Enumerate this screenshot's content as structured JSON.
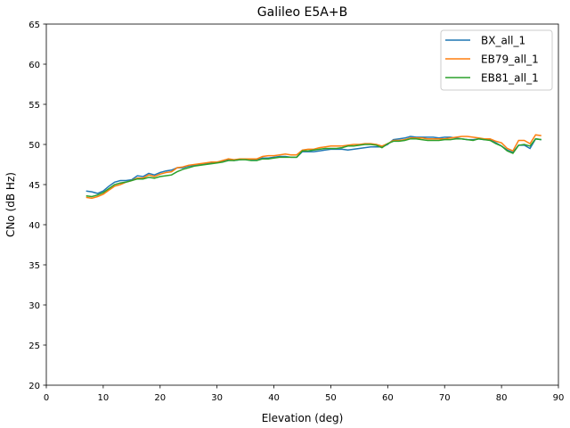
{
  "chart_data": {
    "type": "line",
    "title": "Galileo E5A+B",
    "xlabel": "Elevation (deg)",
    "ylabel": "CNo (dB Hz)",
    "xlim": [
      0,
      90
    ],
    "ylim": [
      20,
      65
    ],
    "xticks": [
      0,
      10,
      20,
      30,
      40,
      50,
      60,
      70,
      80,
      90
    ],
    "yticks": [
      20,
      25,
      30,
      35,
      40,
      45,
      50,
      55,
      60,
      65
    ],
    "grid": false,
    "legend": "top-right",
    "x": [
      7,
      8,
      9,
      10,
      11,
      12,
      13,
      14,
      15,
      16,
      17,
      18,
      19,
      20,
      21,
      22,
      23,
      24,
      25,
      26,
      27,
      28,
      29,
      30,
      31,
      32,
      33,
      34,
      35,
      36,
      37,
      38,
      39,
      40,
      41,
      42,
      43,
      44,
      45,
      46,
      47,
      48,
      49,
      50,
      51,
      52,
      53,
      54,
      55,
      56,
      57,
      58,
      59,
      60,
      61,
      62,
      63,
      64,
      65,
      66,
      67,
      68,
      69,
      70,
      71,
      72,
      73,
      74,
      75,
      76,
      77,
      78,
      79,
      80,
      81,
      82,
      83,
      84,
      85,
      86,
      87
    ],
    "series": [
      {
        "name": "BX_all_1",
        "color": "#1f77b4",
        "values": [
          44.2,
          44.1,
          43.9,
          44.2,
          44.8,
          45.3,
          45.5,
          45.5,
          45.6,
          46.1,
          46.0,
          46.4,
          46.2,
          46.5,
          46.7,
          46.8,
          47.1,
          47.1,
          47.3,
          47.4,
          47.5,
          47.6,
          47.7,
          47.8,
          47.9,
          48.1,
          48.0,
          48.1,
          48.2,
          48.1,
          48.1,
          48.3,
          48.3,
          48.4,
          48.5,
          48.5,
          48.4,
          48.4,
          49.1,
          49.1,
          49.1,
          49.2,
          49.3,
          49.4,
          49.4,
          49.4,
          49.3,
          49.4,
          49.5,
          49.6,
          49.7,
          49.7,
          49.7,
          50.0,
          50.6,
          50.7,
          50.8,
          51.0,
          50.9,
          50.9,
          50.9,
          50.9,
          50.8,
          50.9,
          50.9,
          50.8,
          50.7,
          50.6,
          50.6,
          50.7,
          50.6,
          50.6,
          50.2,
          49.8,
          49.3,
          49.0,
          49.9,
          49.9,
          49.5,
          50.7,
          50.6
        ]
      },
      {
        "name": "EB79_all_1",
        "color": "#ff7f0e",
        "values": [
          43.4,
          43.3,
          43.5,
          43.8,
          44.3,
          44.8,
          45.0,
          45.3,
          45.5,
          45.8,
          45.8,
          46.2,
          46.0,
          46.3,
          46.5,
          46.6,
          47.1,
          47.2,
          47.4,
          47.5,
          47.6,
          47.7,
          47.8,
          47.8,
          48.0,
          48.2,
          48.1,
          48.2,
          48.2,
          48.2,
          48.2,
          48.5,
          48.6,
          48.6,
          48.7,
          48.8,
          48.7,
          48.7,
          49.3,
          49.4,
          49.4,
          49.6,
          49.7,
          49.8,
          49.8,
          49.8,
          49.9,
          50.0,
          50.0,
          50.1,
          50.1,
          50.0,
          49.8,
          50.1,
          50.5,
          50.5,
          50.6,
          50.8,
          50.8,
          50.8,
          50.7,
          50.7,
          50.7,
          50.7,
          50.8,
          50.9,
          51.0,
          51.0,
          50.9,
          50.8,
          50.7,
          50.7,
          50.4,
          50.2,
          49.5,
          49.2,
          50.5,
          50.5,
          50.1,
          51.2,
          51.1
        ]
      },
      {
        "name": "EB81_all_1",
        "color": "#2ca02c",
        "values": [
          43.6,
          43.5,
          43.7,
          44.0,
          44.5,
          45.0,
          45.2,
          45.3,
          45.5,
          45.7,
          45.7,
          45.9,
          45.8,
          46.0,
          46.1,
          46.2,
          46.6,
          46.9,
          47.1,
          47.3,
          47.4,
          47.5,
          47.6,
          47.7,
          47.8,
          48.0,
          48.0,
          48.1,
          48.1,
          48.0,
          48.0,
          48.2,
          48.2,
          48.3,
          48.4,
          48.4,
          48.4,
          48.4,
          49.2,
          49.2,
          49.3,
          49.4,
          49.5,
          49.5,
          49.5,
          49.6,
          49.8,
          49.8,
          49.9,
          50.0,
          50.0,
          49.9,
          49.6,
          50.1,
          50.4,
          50.4,
          50.5,
          50.7,
          50.7,
          50.6,
          50.5,
          50.5,
          50.5,
          50.6,
          50.6,
          50.7,
          50.7,
          50.6,
          50.5,
          50.7,
          50.6,
          50.5,
          50.1,
          49.8,
          49.2,
          48.9,
          49.9,
          50.0,
          49.8,
          50.7,
          50.6
        ]
      }
    ]
  }
}
